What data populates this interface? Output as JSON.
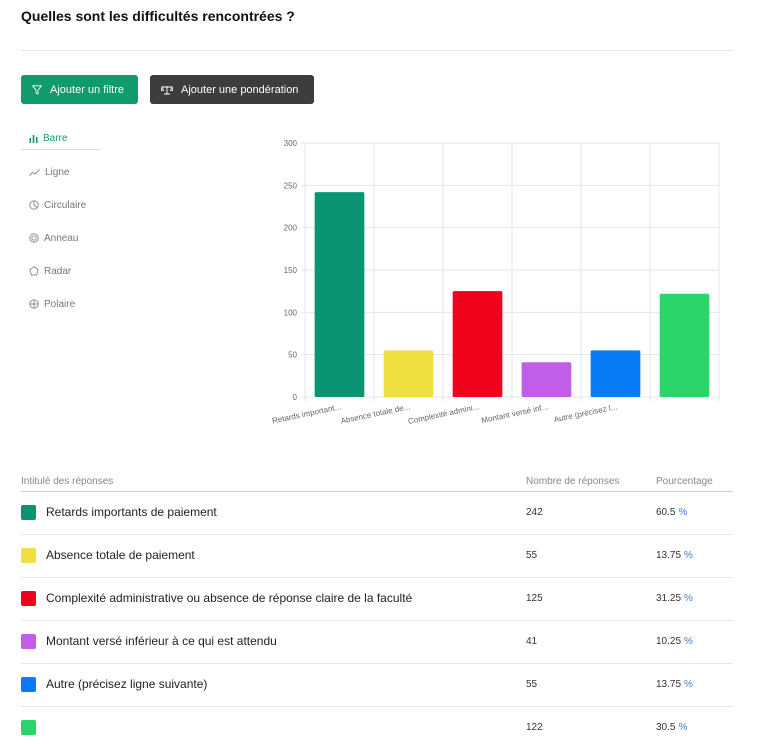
{
  "page": {
    "title": "Quelles sont les difficultés rencontrées ?"
  },
  "toolbar": {
    "filter_label": "Ajouter un filtre",
    "weight_label": "Ajouter une pondération"
  },
  "chart_types": [
    {
      "label": "Barre",
      "icon": "bar-chart-icon",
      "active": true
    },
    {
      "label": "Ligne",
      "icon": "line-chart-icon",
      "active": false
    },
    {
      "label": "Circulaire",
      "icon": "pie-chart-icon",
      "active": false
    },
    {
      "label": "Anneau",
      "icon": "donut-chart-icon",
      "active": false
    },
    {
      "label": "Radar",
      "icon": "radar-chart-icon",
      "active": false
    },
    {
      "label": "Polaire",
      "icon": "polar-chart-icon",
      "active": false
    }
  ],
  "chart_data": {
    "type": "bar",
    "categories": [
      "Retards important...",
      "Absence totale de...",
      "Complexité admini...",
      "Montant versé inf...",
      "Autre (précisez l...",
      ""
    ],
    "values": [
      242,
      55,
      125,
      41,
      55,
      122
    ],
    "colors": [
      "#0a9473",
      "#f0df41",
      "#f0011c",
      "#c25de9",
      "#0a7bf6",
      "#2ad56a"
    ],
    "ylim": [
      0,
      300
    ],
    "yticks": [
      "0",
      "50",
      "100",
      "150",
      "200",
      "250",
      "300"
    ],
    "grid": true,
    "title": "",
    "xlabel": "",
    "ylabel": ""
  },
  "table": {
    "headers": {
      "label": "Intitulé des réponses",
      "count": "Nombre de réponses",
      "pct": "Pourcentage"
    },
    "percent_symbol": "%",
    "rows": [
      {
        "label": "Retards importants de paiement",
        "count": "242",
        "pct": "60.5",
        "color": "#0a9473"
      },
      {
        "label": "Absence totale de paiement",
        "count": "55",
        "pct": "13.75",
        "color": "#f0df41"
      },
      {
        "label": "Complexité administrative ou absence de réponse claire de la faculté",
        "count": "125",
        "pct": "31.25",
        "color": "#f0011c"
      },
      {
        "label": "Montant versé inférieur à ce qui est attendu",
        "count": "41",
        "pct": "10.25",
        "color": "#c25de9"
      },
      {
        "label": "Autre (précisez ligne suivante)",
        "count": "55",
        "pct": "13.75",
        "color": "#0a7bf6"
      },
      {
        "label": "",
        "count": "122",
        "pct": "30.5",
        "color": "#2ad56a"
      }
    ]
  }
}
